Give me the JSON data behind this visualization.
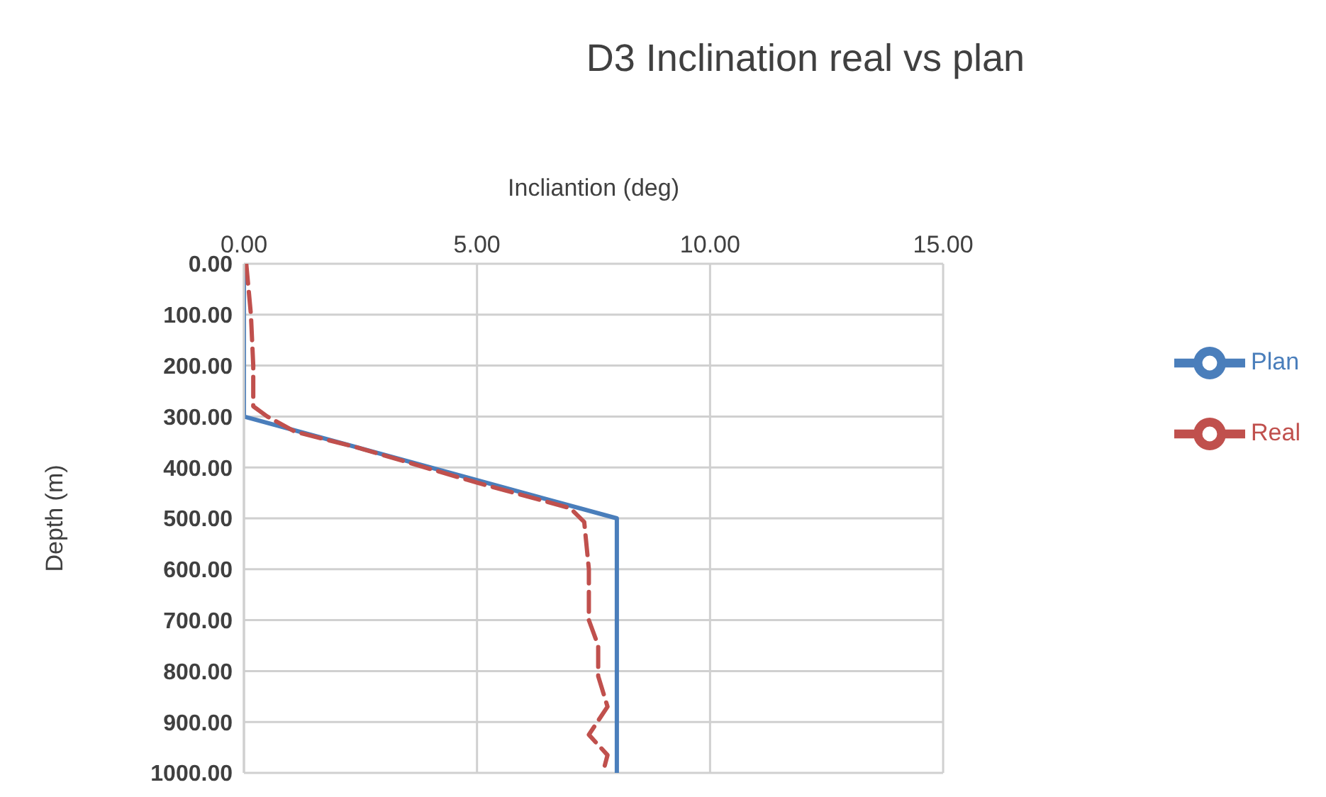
{
  "chart_data": {
    "type": "line",
    "title": "D3 Inclination real vs plan",
    "xlabel": "Incliantion (deg)",
    "ylabel": "Depth (m)",
    "xlim": [
      0,
      15
    ],
    "xticks": [
      {
        "value": 0,
        "label": "0.00"
      },
      {
        "value": 5,
        "label": "5.00"
      },
      {
        "value": 10,
        "label": "10.00"
      },
      {
        "value": 15,
        "label": "15.00"
      }
    ],
    "ylim": [
      1000,
      0
    ],
    "yticks": [
      {
        "value": 0,
        "label": "0.00"
      },
      {
        "value": 100,
        "label": "100.00"
      },
      {
        "value": 200,
        "label": "200.00"
      },
      {
        "value": 300,
        "label": "300.00"
      },
      {
        "value": 400,
        "label": "400.00"
      },
      {
        "value": 500,
        "label": "500.00"
      },
      {
        "value": 600,
        "label": "600.00"
      },
      {
        "value": 700,
        "label": "700.00"
      },
      {
        "value": 800,
        "label": "800.00"
      },
      {
        "value": 900,
        "label": "900.00"
      },
      {
        "value": 1000,
        "label": "1000.00"
      }
    ],
    "grid": true,
    "legend": "right",
    "marker": "none",
    "series": [
      {
        "name": "Plan",
        "color": "#4a7ebb",
        "line_style": "solid",
        "x": [
          0,
          0,
          8,
          8
        ],
        "values": [
          0,
          300,
          500,
          1000
        ]
      },
      {
        "name": "Real",
        "color": "#c0504d",
        "line_style": "dashed",
        "x": [
          0.05,
          0.15,
          0.2,
          0.2,
          0.5,
          1.1,
          2.4,
          5.0,
          7.0,
          7.3,
          7.4,
          7.4,
          7.6,
          7.6,
          7.8,
          7.4,
          7.8,
          7.7
        ],
        "values": [
          0,
          100,
          200,
          280,
          300,
          330,
          360,
          430,
          480,
          507,
          600,
          700,
          750,
          810,
          870,
          925,
          965,
          1000
        ]
      }
    ]
  }
}
